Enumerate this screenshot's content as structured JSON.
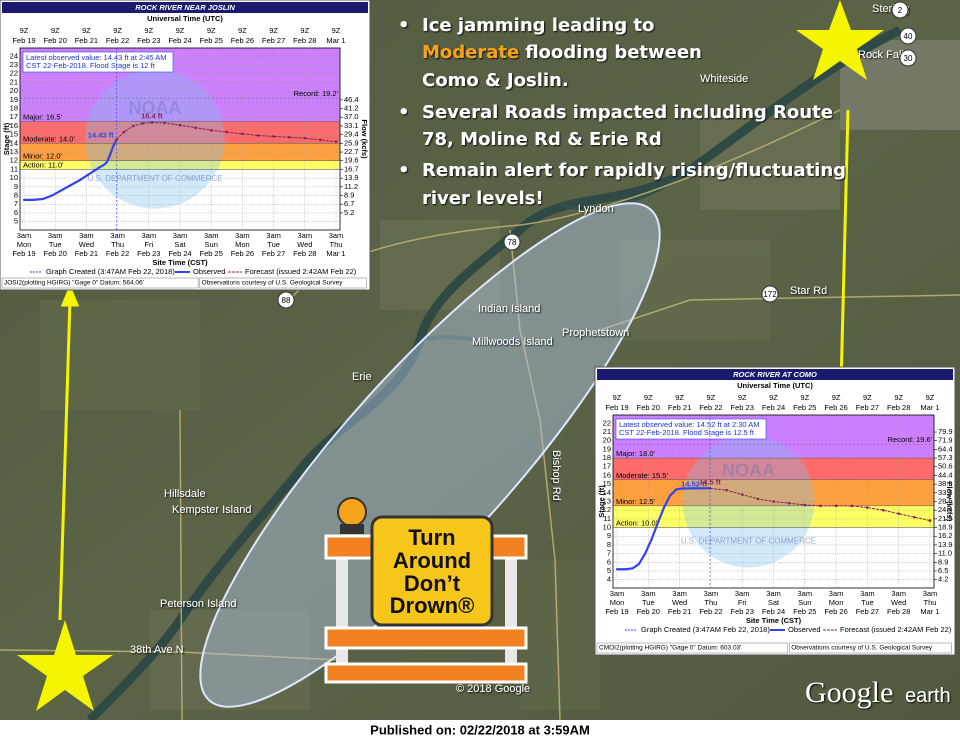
{
  "bullet_symbol": "•",
  "bullets": [
    {
      "lines": [
        [
          "Ice jamming leading to"
        ],
        [
          "Moderate",
          "flooding between"
        ],
        [
          "Como & Joslin."
        ]
      ]
    },
    {
      "lines": [
        [
          "Several Roads impacted including Route"
        ],
        [
          "78, Moline Rd & Erie Rd"
        ]
      ]
    },
    {
      "lines": [
        [
          "Remain alert for rapidly rising/fluctuating"
        ],
        [
          "river levels!"
        ]
      ]
    }
  ],
  "map_labels": [
    "Sterling",
    "Rock Falls",
    "Whiteside",
    "Lyndon",
    "Prophetstown",
    "Indian Island",
    "Millwoods Island",
    "Erie",
    "Hillsdale",
    "Kempster Island",
    "Peterson Island",
    "38th Ave N",
    "Bishop Rd",
    "Star Rd",
    "© 2018 Google"
  ],
  "route_shields": [
    "78",
    "88",
    "172",
    "40",
    "30",
    "2"
  ],
  "sign": [
    "Turn",
    "Around",
    "Don’t",
    "Drown®"
  ],
  "logo": [
    "Google",
    "earth"
  ],
  "footer": "Published on: 02/22/2018 at 3:59AM",
  "hydrographs": [
    {
      "title": "ROCK RIVER NEAR JOSLIN",
      "utc_title": "Universal Time (UTC)",
      "utc_hour": "9Z",
      "local_hour": "3am",
      "days": [
        {
          "dow": "Mon",
          "date": "Feb 19"
        },
        {
          "dow": "Tue",
          "date": "Feb 20"
        },
        {
          "dow": "Wed",
          "date": "Feb 21"
        },
        {
          "dow": "Thu",
          "date": "Feb 22"
        },
        {
          "dow": "Fri",
          "date": "Feb 23"
        },
        {
          "dow": "Sat",
          "date": "Feb 24"
        },
        {
          "dow": "Sun",
          "date": "Feb 25"
        },
        {
          "dow": "Mon",
          "date": "Feb 26"
        },
        {
          "dow": "Tue",
          "date": "Feb 27"
        },
        {
          "dow": "Wed",
          "date": "Feb 28"
        },
        {
          "dow": "Thu",
          "date": "Mar 1"
        }
      ],
      "stage_label": "Stage (ft)",
      "flow_label": "Flow (kcfs)",
      "x_label": "Site Time (CST)",
      "ylim": [
        4.5,
        24.5
      ],
      "yticks": [
        5,
        6,
        7,
        8,
        9,
        10,
        11,
        12,
        13,
        14,
        15,
        16,
        17,
        18,
        19,
        20,
        21,
        22,
        23,
        24
      ],
      "flow_ticks": [
        {
          "stage": 19,
          "label": "46.4"
        },
        {
          "stage": 18,
          "label": "41.2"
        },
        {
          "stage": 17,
          "label": "37.0"
        },
        {
          "stage": 16,
          "label": "33.1"
        },
        {
          "stage": 15,
          "label": "29.4"
        },
        {
          "stage": 14,
          "label": "25.9"
        },
        {
          "stage": 13,
          "label": "22.7"
        },
        {
          "stage": 12,
          "label": "19.6"
        },
        {
          "stage": 11,
          "label": "16.7"
        },
        {
          "stage": 10,
          "label": "13.9"
        },
        {
          "stage": 9,
          "label": "11.2"
        },
        {
          "stage": 8,
          "label": "8.9"
        },
        {
          "stage": 7,
          "label": "6.7"
        },
        {
          "stage": 6,
          "label": "5.2"
        }
      ],
      "categories": [
        {
          "label": "Major: 16.5'",
          "value": 16.5,
          "color": "#ff6a6a"
        },
        {
          "label": "Moderate: 14.0'",
          "value": 14.0,
          "color": "#ffa040"
        },
        {
          "label": "Minor: 12.0'",
          "value": 12.0,
          "color": "#ffff66"
        },
        {
          "label": "Action: 11.0'",
          "value": 11.0,
          "color": "#ffffff"
        }
      ],
      "record": {
        "label": "Record: 19.2'",
        "value": 19.2
      },
      "info": [
        "Latest observed value: 14.43 ft at 2:45 AM",
        "CST 22-Feb-2018. Flood Stage is 12 ft"
      ],
      "observed": {
        "name": "Observed",
        "color": "#3344ee",
        "value_label": "14.43 ft",
        "x": [
          0,
          0.3,
          0.6,
          0.9,
          1.2,
          1.5,
          1.8,
          2.1,
          2.4,
          2.55,
          2.65,
          2.75,
          2.85,
          2.97
        ],
        "values": [
          7.5,
          7.5,
          7.6,
          8.0,
          8.6,
          9.2,
          9.8,
          10.5,
          11.2,
          11.5,
          11.8,
          12.6,
          13.6,
          14.43
        ]
      },
      "forecast": {
        "name": "Forecast (issued 2:42AM Feb 22)",
        "color": "#882255",
        "value_label": "16.4 ft",
        "x": [
          2.97,
          3.2,
          3.5,
          3.8,
          4.1,
          4.5,
          5,
          5.5,
          6,
          6.5,
          7,
          7.5,
          8,
          8.5,
          9,
          9.5,
          10
        ],
        "values": [
          14.43,
          15.3,
          16.0,
          16.3,
          16.4,
          16.35,
          16.1,
          15.8,
          15.5,
          15.3,
          15.1,
          14.9,
          14.8,
          14.7,
          14.6,
          14.4,
          14.2
        ]
      },
      "created": "Graph Created (3:47AM Feb 22, 2018)",
      "watermark": [
        "NOAA",
        "U.S. DEPARTMENT OF COMMERCE"
      ],
      "footer_left": "JOSI2(plotting HGIRG) \"Gage 0\" Datum: 564.06'",
      "footer_right": "Observations courtesy of U.S. Geological Survey"
    },
    {
      "title": "ROCK RIVER AT COMO",
      "utc_title": "Universal Time (UTC)",
      "utc_hour": "9Z",
      "local_hour": "3am",
      "days": [
        {
          "dow": "Mon",
          "date": "Feb 19"
        },
        {
          "dow": "Tue",
          "date": "Feb 20"
        },
        {
          "dow": "Wed",
          "date": "Feb 21"
        },
        {
          "dow": "Thu",
          "date": "Feb 22"
        },
        {
          "dow": "Fri",
          "date": "Feb 23"
        },
        {
          "dow": "Sat",
          "date": "Feb 24"
        },
        {
          "dow": "Sun",
          "date": "Feb 25"
        },
        {
          "dow": "Mon",
          "date": "Feb 26"
        },
        {
          "dow": "Tue",
          "date": "Feb 27"
        },
        {
          "dow": "Wed",
          "date": "Feb 28"
        },
        {
          "dow": "Thu",
          "date": "Mar 1"
        }
      ],
      "stage_label": "Stage (ft)",
      "flow_label": "Flow (kcfs)",
      "x_label": "Site Time (CST)",
      "ylim": [
        3.5,
        22.5
      ],
      "yticks": [
        4,
        5,
        6,
        7,
        8,
        9,
        10,
        11,
        12,
        13,
        14,
        15,
        16,
        17,
        18,
        19,
        20,
        21,
        22
      ],
      "flow_ticks": [
        {
          "stage": 21,
          "label": "79.9"
        },
        {
          "stage": 20,
          "label": "71.9"
        },
        {
          "stage": 19,
          "label": "64.4"
        },
        {
          "stage": 18,
          "label": "57.3"
        },
        {
          "stage": 17,
          "label": "50.6"
        },
        {
          "stage": 16,
          "label": "44.4"
        },
        {
          "stage": 15,
          "label": "38.5"
        },
        {
          "stage": 14,
          "label": "33.3"
        },
        {
          "stage": 13,
          "label": "28.5"
        },
        {
          "stage": 12,
          "label": "24.4"
        },
        {
          "stage": 11,
          "label": "21.9"
        },
        {
          "stage": 10,
          "label": "18.9"
        },
        {
          "stage": 9,
          "label": "16.2"
        },
        {
          "stage": 8,
          "label": "13.9"
        },
        {
          "stage": 7,
          "label": "11.0"
        },
        {
          "stage": 6,
          "label": "8.9"
        },
        {
          "stage": 5,
          "label": "6.5"
        },
        {
          "stage": 4,
          "label": "4.2"
        }
      ],
      "categories": [
        {
          "label": "Major: 18.0'",
          "value": 18.0,
          "color": "#ff6a6a"
        },
        {
          "label": "Moderate: 15.5'",
          "value": 15.5,
          "color": "#ffa040"
        },
        {
          "label": "Minor: 12.5'",
          "value": 12.5,
          "color": "#ffff66"
        },
        {
          "label": "Action: 10.0'",
          "value": 10.0,
          "color": "#ffffff"
        }
      ],
      "record": {
        "label": "Record: 19.6'",
        "value": 19.6
      },
      "info": [
        "Latest observed value: 14.52 ft at 2:30 AM",
        "CST 22-Feb-2018. Flood Stage is 12.5 ft"
      ],
      "observed": {
        "name": "Observed",
        "color": "#3344ee",
        "value_label": "14.52 ft",
        "x": [
          0,
          0.3,
          0.5,
          0.7,
          0.9,
          1.1,
          1.3,
          1.5,
          1.7,
          1.9,
          2.1,
          2.5,
          2.97
        ],
        "values": [
          5.2,
          5.2,
          5.3,
          5.8,
          7.0,
          8.6,
          10.5,
          12.3,
          13.7,
          14.4,
          14.5,
          14.52,
          14.52
        ]
      },
      "forecast": {
        "name": "Forecast (issued 2:42AM Feb 22)",
        "color": "#882255",
        "value_label": "14.5 ft",
        "x": [
          2.97,
          3.5,
          4,
          4.5,
          5,
          5.5,
          6,
          6.5,
          7,
          7.5,
          8,
          8.5,
          9,
          9.5,
          10
        ],
        "values": [
          14.52,
          14.3,
          13.8,
          13.3,
          13.0,
          12.8,
          12.6,
          12.5,
          12.5,
          12.5,
          12.3,
          12.0,
          11.6,
          11.2,
          10.8
        ]
      },
      "created": "Graph Created (3:47AM Feb 22, 2018)",
      "watermark": [
        "NOAA",
        "U.S. DEPARTMENT OF COMMERCE"
      ],
      "footer_left": "CMOI2(plotting HGIRG) \"Gage 0\" Datum: 603.03'",
      "footer_right": "Observations courtesy of U.S. Geological Survey"
    }
  ]
}
